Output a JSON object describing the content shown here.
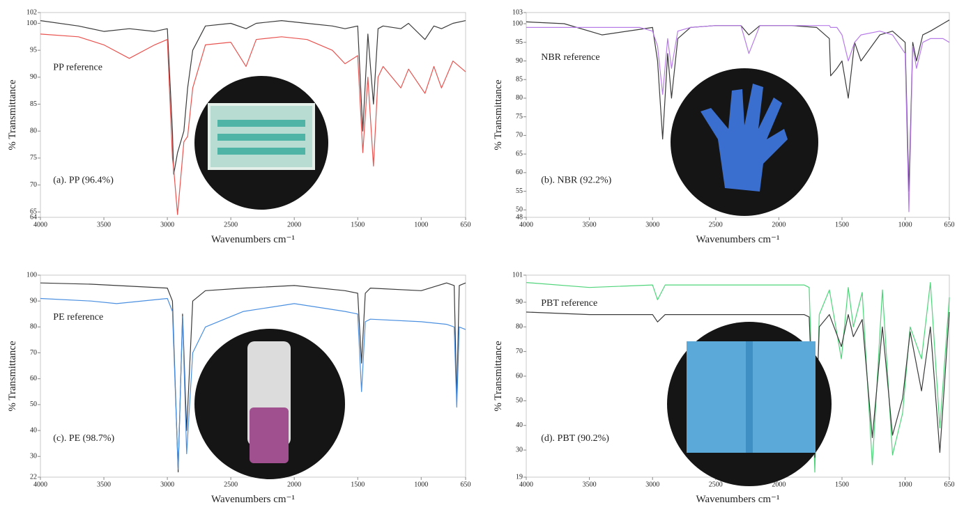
{
  "chart_data": [
    {
      "type": "line",
      "xlabel": "Wavenumbers cm⁻¹",
      "ylabel": "% Transmittance",
      "annotations": [
        "PP reference",
        "(a). PP (96.4%)"
      ],
      "x": [
        4000,
        3700,
        3500,
        3300,
        3100,
        3000,
        2960,
        2950,
        2920,
        2870,
        2840,
        2800,
        2700,
        2500,
        2380,
        2300,
        2100,
        1900,
        1700,
        1600,
        1500,
        1460,
        1420,
        1376,
        1340,
        1300,
        1160,
        1100,
        970,
        900,
        840,
        750,
        650
      ],
      "series": [
        {
          "color": "#3a3a3a",
          "values": [
            100.5,
            99.5,
            98.5,
            99,
            98.5,
            99,
            80,
            72,
            76,
            80,
            88,
            95,
            99.5,
            100,
            99,
            100,
            100.5,
            100,
            99.5,
            99,
            99.5,
            80,
            98,
            85,
            99,
            99.5,
            99,
            100,
            97,
            99.5,
            99,
            100,
            100.5
          ]
        },
        {
          "color": "#e8534f",
          "values": [
            98,
            97.5,
            96,
            93.5,
            96,
            97,
            75,
            73,
            64.5,
            78,
            79,
            88,
            96,
            96.5,
            92,
            97,
            97.5,
            97,
            95,
            92.5,
            94,
            76,
            90,
            73.5,
            90,
            92,
            88,
            91.5,
            87,
            92,
            88,
            93,
            91
          ]
        }
      ],
      "xlim": [
        4000,
        650
      ],
      "xticks": [
        4000,
        3500,
        3000,
        2500,
        2000,
        1500,
        1000,
        650
      ],
      "ylim": [
        64,
        102
      ],
      "yticks": [
        64,
        65,
        70,
        75,
        80,
        85,
        90,
        95,
        100,
        102
      ]
    },
    {
      "type": "line",
      "xlabel": "Wavenumbers cm⁻¹",
      "ylabel": "% Transmittance",
      "annotations": [
        "NBR reference",
        "(b). NBR (92.2%)"
      ],
      "x": [
        4000,
        3700,
        3400,
        3100,
        3000,
        2960,
        2920,
        2880,
        2850,
        2800,
        2700,
        2500,
        2300,
        2237,
        2150,
        1900,
        1700,
        1600,
        1590,
        1540,
        1500,
        1450,
        1400,
        1350,
        1200,
        1100,
        1000,
        970,
        940,
        910,
        860,
        800,
        700,
        650
      ],
      "series": [
        {
          "color": "#3a3a3a",
          "values": [
            100.5,
            100,
            97,
            98.5,
            99,
            90,
            69,
            92,
            80,
            96,
            99,
            99.5,
            99.5,
            97,
            99.5,
            99.5,
            99,
            96,
            86,
            88,
            90,
            80,
            95,
            90,
            97,
            98,
            95,
            55,
            95,
            90,
            97,
            98,
            100,
            101
          ]
        },
        {
          "color": "#b77be8",
          "values": [
            99,
            99,
            99,
            99,
            98,
            94,
            81,
            96,
            88,
            98,
            99,
            99.5,
            99.5,
            92,
            99.5,
            99.5,
            99.5,
            99.5,
            99,
            99,
            97,
            90,
            95,
            97,
            98,
            97,
            92,
            49.5,
            94,
            88,
            95,
            96,
            96,
            95
          ]
        }
      ],
      "xlim": [
        4000,
        650
      ],
      "xticks": [
        4000,
        3500,
        3000,
        2500,
        2000,
        1500,
        1000,
        650
      ],
      "ylim": [
        48,
        103
      ],
      "yticks": [
        48,
        50,
        55,
        60,
        65,
        70,
        75,
        80,
        85,
        90,
        95,
        100,
        103
      ]
    },
    {
      "type": "line",
      "xlabel": "Wavenumbers cm⁻¹",
      "ylabel": "% Transmittance",
      "annotations": [
        "PE reference",
        "(c). PE (98.7%)"
      ],
      "x": [
        4000,
        3600,
        3400,
        3000,
        2960,
        2915,
        2880,
        2848,
        2800,
        2700,
        2400,
        2000,
        1600,
        1500,
        1470,
        1440,
        1400,
        1000,
        800,
        740,
        720,
        700,
        650
      ],
      "series": [
        {
          "color": "#3a3a3a",
          "values": [
            97,
            96.5,
            96,
            95,
            90,
            24,
            85,
            40,
            90,
            94,
            95,
            96,
            94,
            93,
            66,
            93,
            95,
            94,
            97,
            96,
            52,
            96,
            97
          ]
        },
        {
          "color": "#4a8fe0",
          "values": [
            91,
            90,
            89,
            91,
            86,
            25,
            84,
            31,
            70,
            80,
            86,
            89,
            86,
            85,
            55,
            82,
            83,
            82,
            81,
            80,
            49,
            80,
            79
          ]
        }
      ],
      "xlim": [
        4000,
        650
      ],
      "xticks": [
        4000,
        3500,
        3000,
        2500,
        2000,
        1500,
        1000,
        650
      ],
      "ylim": [
        22,
        100
      ],
      "yticks": [
        22,
        30,
        40,
        50,
        60,
        70,
        80,
        90,
        100
      ]
    },
    {
      "type": "line",
      "xlabel": "Wavenumbers cm⁻¹",
      "ylabel": "% Transmittance",
      "annotations": [
        "PBT reference",
        "(d). PBT (90.2%)"
      ],
      "x": [
        4000,
        3500,
        3000,
        2960,
        2900,
        2700,
        2000,
        1800,
        1760,
        1715,
        1680,
        1600,
        1505,
        1450,
        1410,
        1340,
        1260,
        1180,
        1100,
        1020,
        960,
        870,
        800,
        725,
        650
      ],
      "series": [
        {
          "color": "#4fd47a",
          "values": [
            98,
            96,
            97,
            91,
            97,
            97,
            97,
            97,
            96,
            21,
            85,
            95,
            67,
            96,
            80,
            94,
            24,
            95,
            28,
            45,
            80,
            67,
            98,
            39,
            92
          ]
        },
        {
          "color": "#3a3a3a",
          "values": [
            86,
            85,
            85,
            82,
            85,
            85,
            85,
            85,
            84,
            27,
            80,
            85,
            72,
            85,
            76,
            83,
            35,
            80,
            36,
            51,
            78,
            54,
            80,
            29,
            86
          ]
        }
      ],
      "xlim": [
        4000,
        650
      ],
      "xticks": [
        4000,
        3500,
        3000,
        2500,
        2000,
        1500,
        1000,
        650
      ],
      "ylim": [
        19,
        101
      ],
      "yticks": [
        19,
        30,
        40,
        50,
        60,
        70,
        80,
        90,
        101
      ]
    }
  ]
}
